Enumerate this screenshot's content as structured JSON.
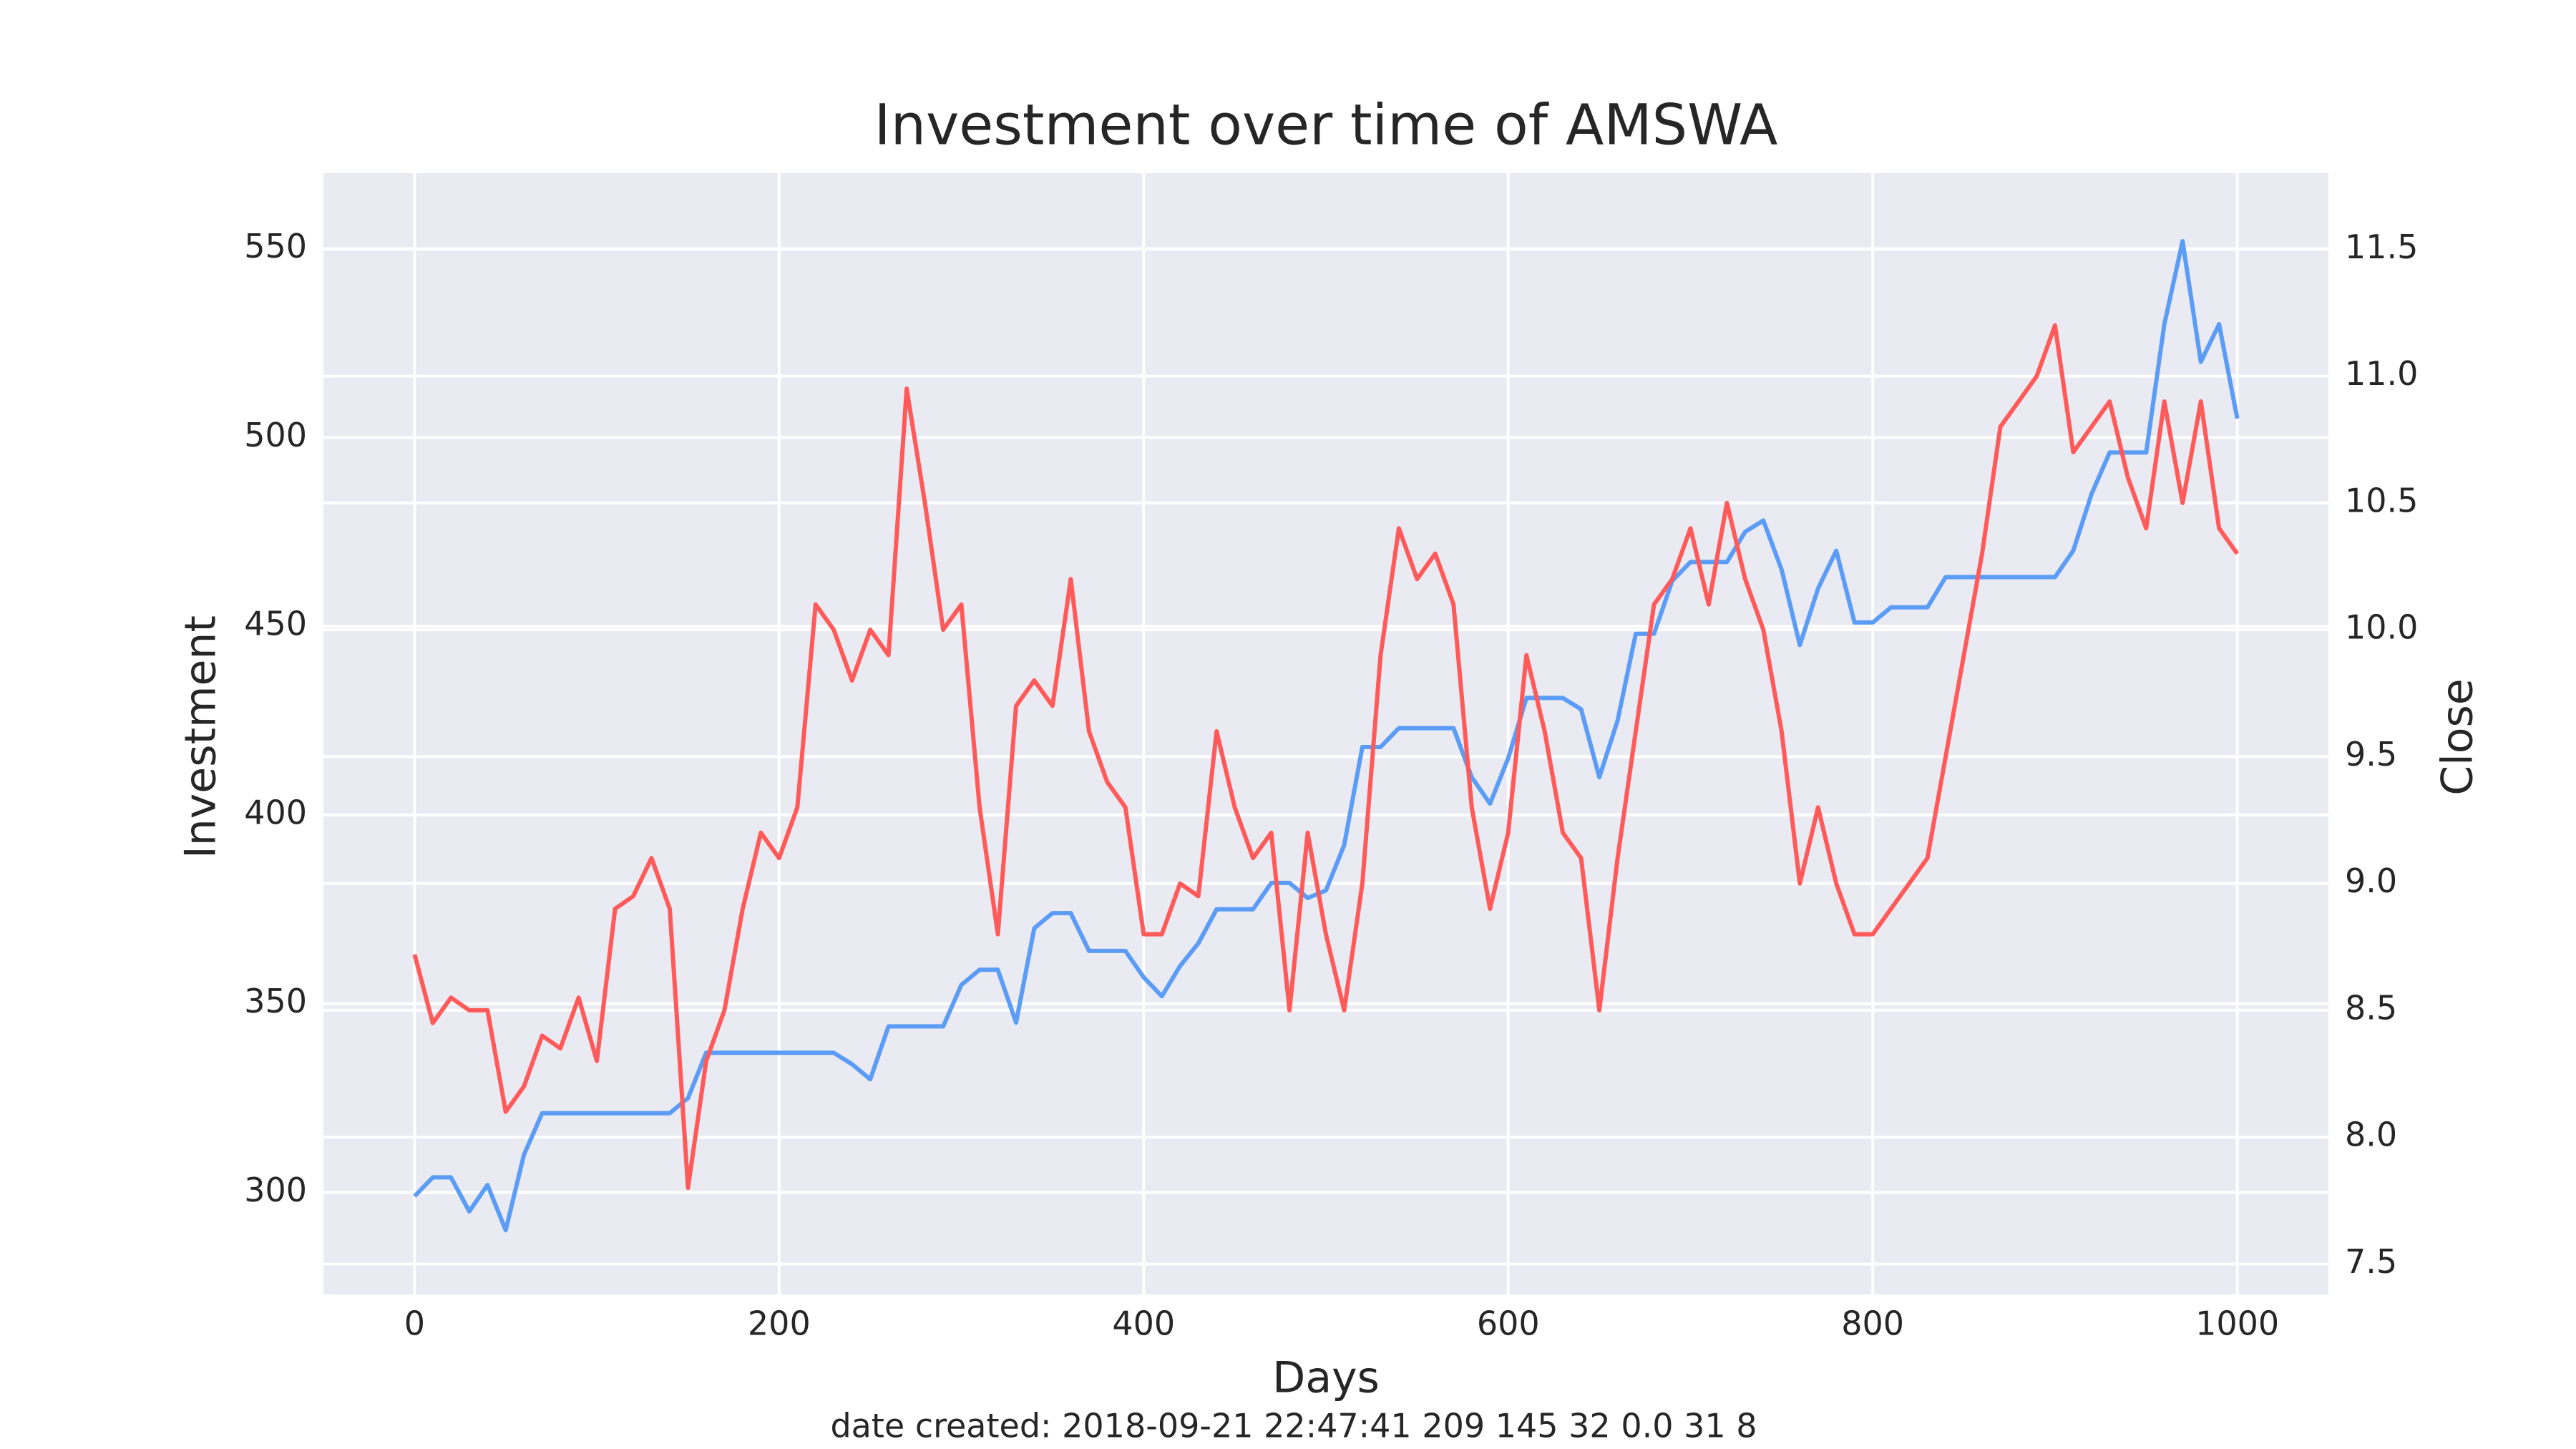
{
  "chart_data": {
    "type": "line",
    "title": "Investment over time of AMSWA",
    "xlabel": "Days",
    "footer": "date created: 2018-09-21 22:47:41 209 145 32 0.0 31 8",
    "x": [
      0,
      10,
      20,
      30,
      40,
      50,
      60,
      70,
      80,
      90,
      100,
      110,
      120,
      130,
      140,
      150,
      160,
      170,
      180,
      190,
      200,
      210,
      220,
      230,
      240,
      250,
      260,
      270,
      280,
      290,
      300,
      310,
      320,
      330,
      340,
      350,
      360,
      370,
      380,
      390,
      400,
      410,
      420,
      430,
      440,
      450,
      460,
      470,
      480,
      490,
      500,
      510,
      520,
      530,
      540,
      550,
      560,
      570,
      580,
      590,
      600,
      610,
      620,
      630,
      640,
      650,
      660,
      670,
      680,
      690,
      700,
      710,
      720,
      730,
      740,
      750,
      760,
      770,
      780,
      790,
      800,
      810,
      820,
      830,
      840,
      850,
      860,
      870,
      880,
      890,
      900,
      910,
      920,
      930,
      940,
      950,
      960,
      970,
      980,
      990,
      1000
    ],
    "series": [
      {
        "name": "Investment",
        "color": "#5b9cf6",
        "axis": "y",
        "values": [
          299,
          304,
          304,
          295,
          302,
          290,
          310,
          321,
          321,
          321,
          321,
          321,
          321,
          321,
          321,
          325,
          337,
          337,
          337,
          337,
          337,
          337,
          337,
          337,
          334,
          330,
          344,
          344,
          344,
          344,
          355,
          359,
          359,
          345,
          370,
          374,
          374,
          364,
          364,
          364,
          357,
          352,
          360,
          366,
          375,
          375,
          375,
          382,
          382,
          378,
          380,
          392,
          418,
          418,
          423,
          423,
          423,
          423,
          410,
          403,
          415,
          431,
          431,
          431,
          428,
          410,
          425,
          448,
          448,
          462,
          467,
          467,
          467,
          475,
          478,
          465,
          445,
          460,
          470,
          451,
          451,
          455,
          455,
          455,
          463,
          463,
          463,
          463,
          463,
          463,
          463,
          470,
          485,
          496,
          496,
          496,
          530,
          552,
          520,
          530,
          505
        ]
      },
      {
        "name": "Close",
        "color": "#ff5a5a",
        "axis": "y2",
        "values": [
          8.72,
          8.45,
          8.55,
          8.5,
          8.5,
          8.1,
          8.2,
          8.4,
          8.35,
          8.55,
          8.3,
          8.9,
          8.95,
          9.1,
          8.9,
          7.8,
          8.3,
          8.5,
          8.9,
          9.2,
          9.1,
          9.3,
          10.1,
          10.0,
          9.8,
          10.0,
          9.9,
          10.95,
          10.5,
          10.0,
          10.1,
          9.3,
          8.8,
          9.7,
          9.8,
          9.7,
          10.2,
          9.6,
          9.4,
          9.3,
          8.8,
          8.8,
          9.0,
          8.95,
          9.6,
          9.3,
          9.1,
          9.2,
          8.5,
          9.2,
          8.8,
          8.5,
          9.0,
          9.9,
          10.4,
          10.2,
          10.3,
          10.1,
          9.3,
          8.9,
          9.2,
          9.9,
          9.6,
          9.2,
          9.1,
          8.5,
          9.1,
          9.6,
          10.1,
          10.2,
          10.4,
          10.1,
          10.5,
          10.2,
          10.0,
          9.6,
          9.0,
          9.3,
          9.0,
          8.8,
          8.8,
          8.9,
          9.0,
          9.1,
          9.5,
          9.9,
          10.3,
          10.8,
          10.9,
          11.0,
          11.2,
          10.7,
          10.8,
          10.9,
          10.6,
          10.4,
          10.9,
          10.5,
          10.9,
          10.4,
          10.3
        ]
      }
    ],
    "xlim": [
      -50,
      1050
    ],
    "xticks": [
      0,
      200,
      400,
      600,
      800,
      1000
    ],
    "ylim": [
      273,
      570
    ],
    "yticks": [
      300,
      350,
      400,
      450,
      500,
      550
    ],
    "y2lim": [
      7.38,
      11.8
    ],
    "y2ticks": [
      7.5,
      {
        "value": 8.0,
        "label": "8.0"
      },
      8.5,
      {
        "value": 9.0,
        "label": "9.0"
      },
      9.5,
      {
        "value": 10.0,
        "label": "10.0"
      },
      10.5,
      {
        "value": 11.0,
        "label": "11.0"
      },
      11.5
    ],
    "grid": true,
    "background": "#eaeaf2"
  }
}
